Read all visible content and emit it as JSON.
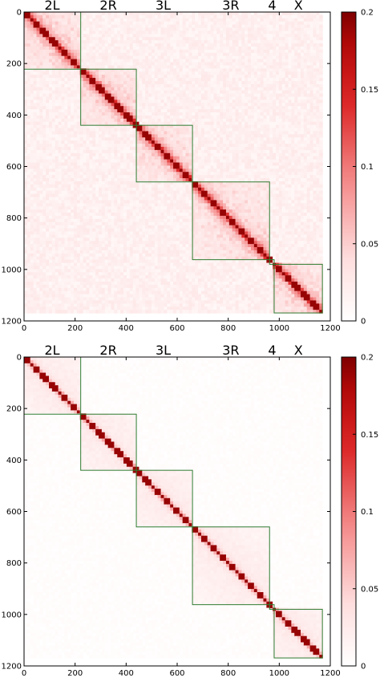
{
  "figure": {
    "colors": {
      "low": "#ffffff",
      "high": "#7f0000",
      "domain_box": "#2e7d32"
    }
  },
  "chart_data": [
    {
      "type": "heatmap",
      "title": "",
      "xlabel": "",
      "ylabel": "",
      "matrix_size": 1169,
      "xlim": [
        0,
        1200
      ],
      "ylim": [
        1200,
        0
      ],
      "x_ticks": [
        0,
        200,
        400,
        600,
        800,
        1000,
        1200
      ],
      "y_ticks": [
        0,
        200,
        400,
        600,
        800,
        1000,
        1200
      ],
      "chromosome_labels": [
        {
          "label": "2L",
          "center": 110
        },
        {
          "label": "2R",
          "center": 330
        },
        {
          "label": "3L",
          "center": 545
        },
        {
          "label": "3R",
          "center": 810
        },
        {
          "label": "4",
          "center": 972
        },
        {
          "label": "X",
          "center": 1075
        }
      ],
      "domains": [
        {
          "name": "2L",
          "start": 0,
          "end": 222
        },
        {
          "name": "2R",
          "start": 222,
          "end": 440
        },
        {
          "name": "3L",
          "start": 440,
          "end": 660
        },
        {
          "name": "3R",
          "start": 660,
          "end": 962
        },
        {
          "name": "4",
          "start": 962,
          "end": 980
        },
        {
          "name": "X",
          "start": 980,
          "end": 1169
        }
      ],
      "colorbar": {
        "min": 0,
        "max": 0.2,
        "ticks": [
          "0.2",
          "0.15",
          "0.1",
          "0.05",
          "0"
        ]
      },
      "style": {
        "background_level": 0.022,
        "decay": 0.18,
        "peak": 0.2
      }
    },
    {
      "type": "heatmap",
      "title": "",
      "xlabel": "",
      "ylabel": "",
      "matrix_size": 1169,
      "xlim": [
        0,
        1200
      ],
      "ylim": [
        1200,
        0
      ],
      "x_ticks": [
        0,
        200,
        400,
        600,
        800,
        1000,
        1200
      ],
      "y_ticks": [
        0,
        200,
        400,
        600,
        800,
        1000,
        1200
      ],
      "chromosome_labels": [
        {
          "label": "2L",
          "center": 110
        },
        {
          "label": "2R",
          "center": 330
        },
        {
          "label": "3L",
          "center": 545
        },
        {
          "label": "3R",
          "center": 810
        },
        {
          "label": "4",
          "center": 972
        },
        {
          "label": "X",
          "center": 1075
        }
      ],
      "domains": [
        {
          "name": "2L",
          "start": 0,
          "end": 222
        },
        {
          "name": "2R",
          "start": 222,
          "end": 440
        },
        {
          "name": "3L",
          "start": 440,
          "end": 660
        },
        {
          "name": "3R",
          "start": 660,
          "end": 962
        },
        {
          "name": "4",
          "start": 962,
          "end": 980
        },
        {
          "name": "X",
          "start": 980,
          "end": 1169
        }
      ],
      "colorbar": {
        "min": 0,
        "max": 0.2,
        "ticks": [
          "0.2",
          "0.15",
          "0.1",
          "0.05",
          "0"
        ]
      },
      "style": {
        "background_level": 0.004,
        "decay": 0.09,
        "peak": 0.2
      }
    }
  ]
}
